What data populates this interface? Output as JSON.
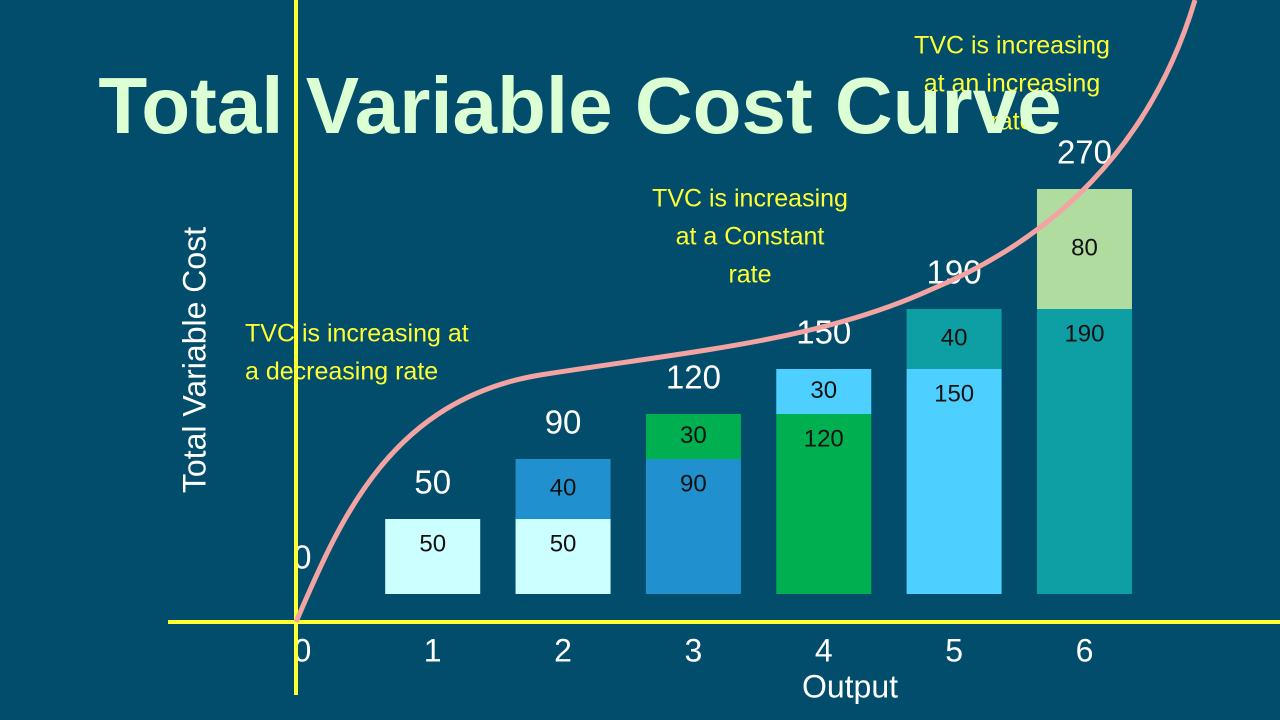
{
  "chart_data": {
    "type": "stacked_bar",
    "title": "Total Variable Cost Curve",
    "y_label": "Total Variable Cost",
    "x_label": "Output",
    "x": [
      0,
      1,
      2,
      3,
      4,
      5,
      6
    ],
    "xlim": [
      -1,
      7.5
    ],
    "xticks": [
      0,
      1,
      2,
      3,
      4,
      5,
      6
    ],
    "ylim": [
      0,
      280
    ],
    "series": [
      {
        "values": [
          null,
          50,
          50,
          90,
          120,
          150,
          190
        ],
        "colors": [
          null,
          "#ccffff",
          "#ccffff",
          "#2190cf",
          "#00b050",
          "#4dcfff",
          "#0d9fa3"
        ]
      },
      {
        "values": [
          null,
          null,
          40,
          30,
          30,
          40,
          80
        ],
        "colors": [
          null,
          null,
          "#2190cf",
          "#00b050",
          "#4dcfff",
          "#0d9fa3",
          "#b0dca0"
        ]
      }
    ],
    "totals": [
      0,
      50,
      90,
      120,
      150,
      190,
      270
    ],
    "annotations": [
      {
        "lines": [
          "TVC is increasing at",
          "a decreasing rate"
        ]
      },
      {
        "lines": [
          "TVC is increasing",
          "at a Constant",
          "rate"
        ]
      },
      {
        "lines": [
          "TVC is increasing",
          "at an increasing",
          "rate"
        ]
      }
    ]
  }
}
